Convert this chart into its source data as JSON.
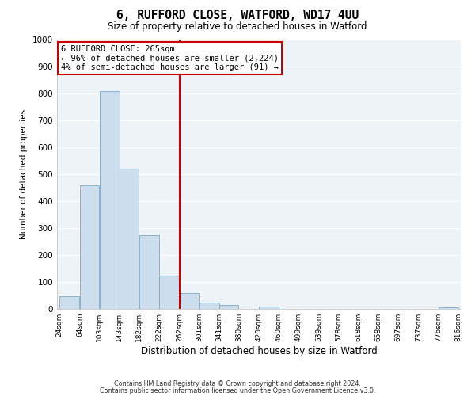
{
  "title": "6, RUFFORD CLOSE, WATFORD, WD17 4UU",
  "subtitle": "Size of property relative to detached houses in Watford",
  "xlabel": "Distribution of detached houses by size in Watford",
  "ylabel": "Number of detached properties",
  "bar_color": "#ccdded",
  "bar_edge_color": "#7aaac8",
  "background_color": "#eef3f8",
  "grid_color": "#ffffff",
  "vline_x": 262,
  "vline_color": "#cc0000",
  "bin_edges": [
    24,
    64,
    103,
    143,
    182,
    222,
    262,
    301,
    341,
    380,
    420,
    460,
    499,
    539,
    578,
    618,
    658,
    697,
    737,
    776,
    816
  ],
  "bin_heights": [
    47,
    460,
    810,
    521,
    273,
    124,
    60,
    25,
    15,
    0,
    8,
    0,
    0,
    0,
    0,
    0,
    0,
    0,
    0,
    5
  ],
  "tick_labels": [
    "24sqm",
    "64sqm",
    "103sqm",
    "143sqm",
    "182sqm",
    "222sqm",
    "262sqm",
    "301sqm",
    "341sqm",
    "380sqm",
    "420sqm",
    "460sqm",
    "499sqm",
    "539sqm",
    "578sqm",
    "618sqm",
    "658sqm",
    "697sqm",
    "737sqm",
    "776sqm",
    "816sqm"
  ],
  "ylim": [
    0,
    1000
  ],
  "yticks": [
    0,
    100,
    200,
    300,
    400,
    500,
    600,
    700,
    800,
    900,
    1000
  ],
  "annotation_title": "6 RUFFORD CLOSE: 265sqm",
  "annotation_line1": "← 96% of detached houses are smaller (2,224)",
  "annotation_line2": "4% of semi-detached houses are larger (91) →",
  "annotation_box_color": "#ffffff",
  "annotation_box_edge": "#cc0000",
  "footer1": "Contains HM Land Registry data © Crown copyright and database right 2024.",
  "footer2": "Contains public sector information licensed under the Open Government Licence v3.0."
}
